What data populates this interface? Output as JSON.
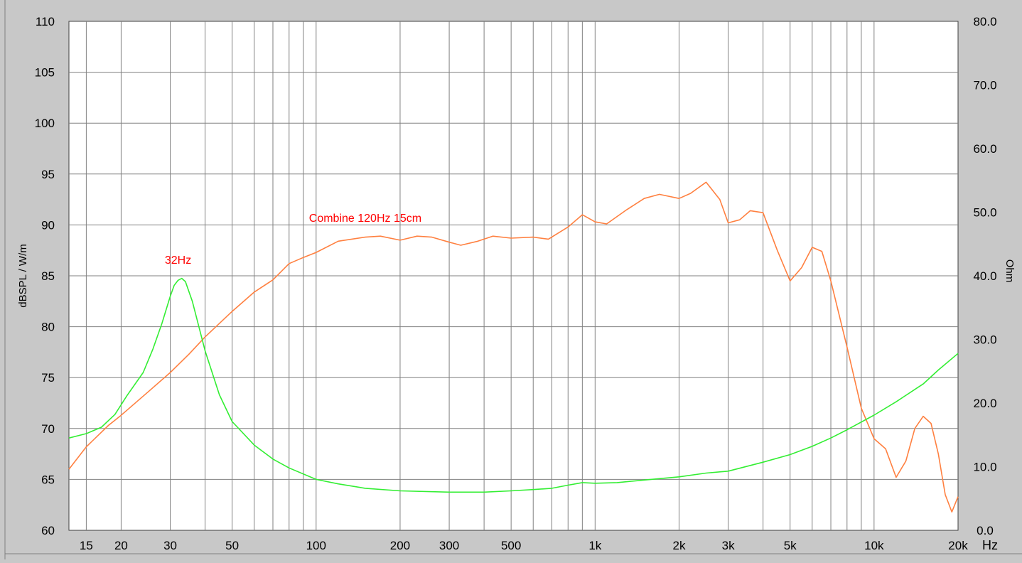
{
  "chart_data": {
    "type": "line",
    "xscale": "log",
    "xlim": [
      13,
      20000
    ],
    "x_ticks": [
      {
        "v": 15,
        "label": "15"
      },
      {
        "v": 20,
        "label": "20"
      },
      {
        "v": 30,
        "label": "30"
      },
      {
        "v": 50,
        "label": "50"
      },
      {
        "v": 100,
        "label": "100"
      },
      {
        "v": 200,
        "label": "200"
      },
      {
        "v": 300,
        "label": "300"
      },
      {
        "v": 500,
        "label": "500"
      },
      {
        "v": 1000,
        "label": "1k"
      },
      {
        "v": 2000,
        "label": "2k"
      },
      {
        "v": 3000,
        "label": "3k"
      },
      {
        "v": 5000,
        "label": "5k"
      },
      {
        "v": 10000,
        "label": "10k"
      },
      {
        "v": 20000,
        "label": "20k"
      }
    ],
    "x_unit": "Hz",
    "grid_x": [
      15,
      20,
      30,
      40,
      50,
      60,
      70,
      80,
      90,
      100,
      200,
      300,
      400,
      500,
      600,
      700,
      800,
      900,
      1000,
      2000,
      3000,
      4000,
      5000,
      6000,
      7000,
      8000,
      9000,
      10000,
      20000
    ],
    "ylabel": "dBSPL / W/m",
    "ylim": [
      60,
      110
    ],
    "y_ticks": [
      60,
      65,
      70,
      75,
      80,
      85,
      90,
      95,
      100,
      105,
      110
    ],
    "y2label": "Ohm",
    "y2lim": [
      0,
      80
    ],
    "y2_ticks": [
      "0.0",
      "10.0",
      "20.0",
      "30.0",
      "40.0",
      "50.0",
      "60.0",
      "70.0",
      "80.0"
    ],
    "grid": true,
    "colors": {
      "spl": "#ff8040",
      "impedance": "#33ee33",
      "annotation": "#ff0000",
      "grid": "#808080"
    },
    "annotations": [
      {
        "text": "32Hz",
        "x": 32,
        "y": 86.2
      },
      {
        "text": "Combine 120Hz 15cm",
        "x": 150,
        "y": 90.3
      }
    ],
    "series": [
      {
        "id": "spl",
        "axis": "left",
        "values": [
          [
            13,
            66
          ],
          [
            15,
            68.2
          ],
          [
            18,
            70.3
          ],
          [
            20,
            71.3
          ],
          [
            25,
            73.6
          ],
          [
            30,
            75.5
          ],
          [
            35,
            77.3
          ],
          [
            40,
            79
          ],
          [
            50,
            81.5
          ],
          [
            60,
            83.4
          ],
          [
            70,
            84.6
          ],
          [
            80,
            86.2
          ],
          [
            90,
            86.8
          ],
          [
            100,
            87.3
          ],
          [
            120,
            88.4
          ],
          [
            150,
            88.8
          ],
          [
            170,
            88.9
          ],
          [
            200,
            88.5
          ],
          [
            230,
            88.9
          ],
          [
            260,
            88.8
          ],
          [
            300,
            88.3
          ],
          [
            330,
            88
          ],
          [
            380,
            88.4
          ],
          [
            430,
            88.9
          ],
          [
            500,
            88.7
          ],
          [
            600,
            88.8
          ],
          [
            680,
            88.6
          ],
          [
            800,
            89.8
          ],
          [
            900,
            91
          ],
          [
            1000,
            90.3
          ],
          [
            1100,
            90.1
          ],
          [
            1300,
            91.5
          ],
          [
            1500,
            92.6
          ],
          [
            1700,
            93
          ],
          [
            2000,
            92.6
          ],
          [
            2200,
            93.1
          ],
          [
            2500,
            94.2
          ],
          [
            2800,
            92.5
          ],
          [
            3000,
            90.2
          ],
          [
            3300,
            90.5
          ],
          [
            3600,
            91.4
          ],
          [
            4000,
            91.2
          ],
          [
            4500,
            87.5
          ],
          [
            5000,
            84.5
          ],
          [
            5500,
            85.8
          ],
          [
            6000,
            87.8
          ],
          [
            6500,
            87.4
          ],
          [
            7000,
            84.5
          ],
          [
            8000,
            78
          ],
          [
            9000,
            72
          ],
          [
            10000,
            69
          ],
          [
            11000,
            68
          ],
          [
            12000,
            65.2
          ],
          [
            13000,
            66.8
          ],
          [
            14000,
            70
          ],
          [
            15000,
            71.2
          ],
          [
            16000,
            70.5
          ],
          [
            17000,
            67.5
          ],
          [
            18000,
            63.5
          ],
          [
            19000,
            61.8
          ],
          [
            20000,
            63.3
          ]
        ]
      },
      {
        "id": "impedance",
        "axis": "right",
        "values": [
          [
            13,
            14.5
          ],
          [
            15,
            15.2
          ],
          [
            17,
            16.2
          ],
          [
            19,
            18.2
          ],
          [
            21,
            21.2
          ],
          [
            24,
            24.8
          ],
          [
            26,
            28.5
          ],
          [
            28,
            32.5
          ],
          [
            30,
            36.8
          ],
          [
            31,
            38.5
          ],
          [
            32,
            39.3
          ],
          [
            33,
            39.6
          ],
          [
            34,
            39.1
          ],
          [
            36,
            36
          ],
          [
            40,
            28.2
          ],
          [
            45,
            21.3
          ],
          [
            50,
            17.1
          ],
          [
            60,
            13.4
          ],
          [
            70,
            11.2
          ],
          [
            80,
            9.8
          ],
          [
            100,
            8
          ],
          [
            120,
            7.3
          ],
          [
            150,
            6.6
          ],
          [
            200,
            6.2
          ],
          [
            300,
            6
          ],
          [
            400,
            6
          ],
          [
            500,
            6.2
          ],
          [
            600,
            6.4
          ],
          [
            700,
            6.6
          ],
          [
            800,
            7.1
          ],
          [
            900,
            7.5
          ],
          [
            1000,
            7.4
          ],
          [
            1200,
            7.5
          ],
          [
            1500,
            7.9
          ],
          [
            2000,
            8.4
          ],
          [
            2500,
            9
          ],
          [
            3000,
            9.3
          ],
          [
            4000,
            10.7
          ],
          [
            5000,
            11.9
          ],
          [
            6000,
            13.2
          ],
          [
            7000,
            14.5
          ],
          [
            8000,
            15.8
          ],
          [
            10000,
            18.1
          ],
          [
            12000,
            20.2
          ],
          [
            15000,
            23
          ],
          [
            17000,
            25.2
          ],
          [
            20000,
            27.8
          ]
        ]
      }
    ]
  }
}
